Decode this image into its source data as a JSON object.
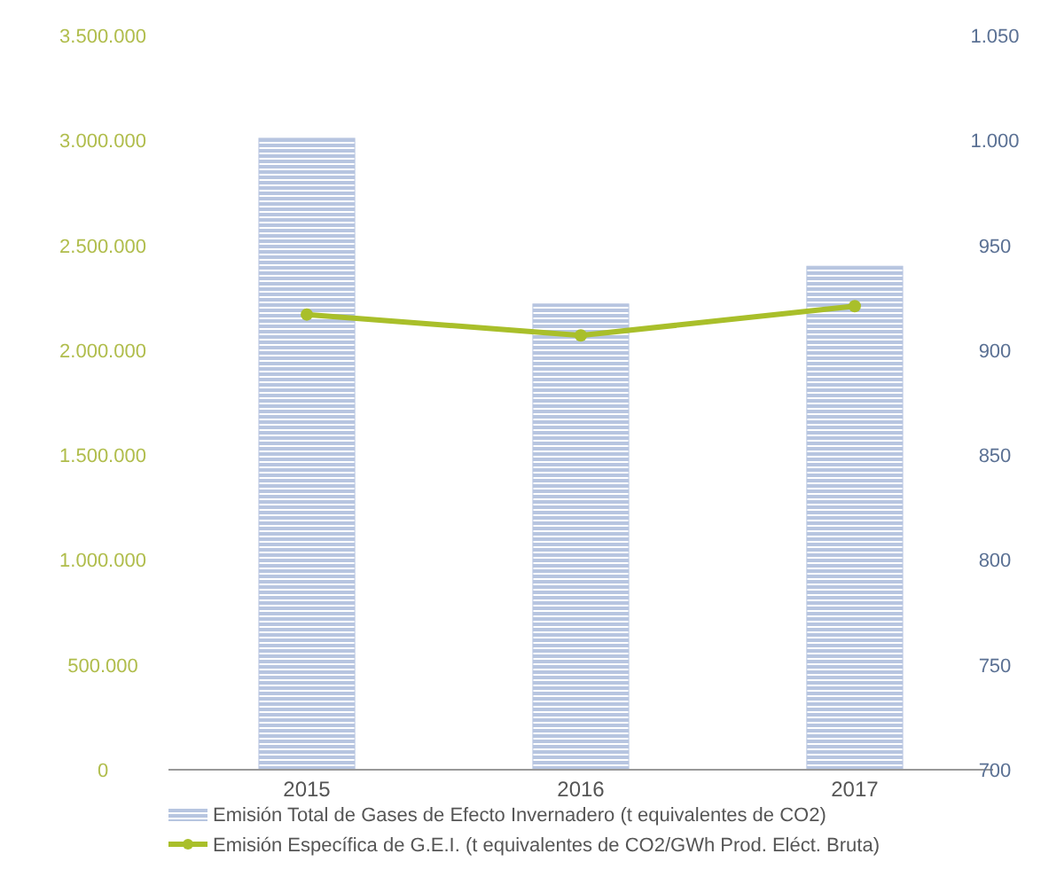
{
  "chart_data": {
    "type": "bar",
    "categories": [
      "2015",
      "2016",
      "2017"
    ],
    "series": [
      {
        "name": "Emisión Total de Gases de Efecto Invernadero (t equivalentes de CO2)",
        "color": "#b7c5e0",
        "values": [
          3010000,
          2220000,
          2400000
        ]
      },
      {
        "name": "Emisión Específica de G.E.I. (t equivalentes de CO2/GWh Prod. Eléct. Bruta)",
        "type": "line",
        "axis": "y2",
        "color": "#a9bf2a",
        "values": [
          917,
          907,
          921
        ]
      }
    ],
    "ylim": [
      0,
      3500000
    ],
    "yticks": [
      {
        "value": 0,
        "label": "0"
      },
      {
        "value": 500000,
        "label": "500.000"
      },
      {
        "value": 1000000,
        "label": "1.000.000"
      },
      {
        "value": 1500000,
        "label": "1.500.000"
      },
      {
        "value": 2000000,
        "label": "2.000.000"
      },
      {
        "value": 2500000,
        "label": "2.500.000"
      },
      {
        "value": 3000000,
        "label": "3.000.000"
      },
      {
        "value": 3500000,
        "label": "3.500.000"
      }
    ],
    "y2lim": [
      700,
      1050
    ],
    "y2ticks": [
      700,
      750,
      800,
      850,
      900,
      950,
      {
        "value": 1000,
        "label": "1.000"
      },
      {
        "value": 1050,
        "label": "1.050"
      }
    ],
    "legend": "bottom",
    "marker": "circle",
    "line_style": "solid",
    "grid": false
  }
}
